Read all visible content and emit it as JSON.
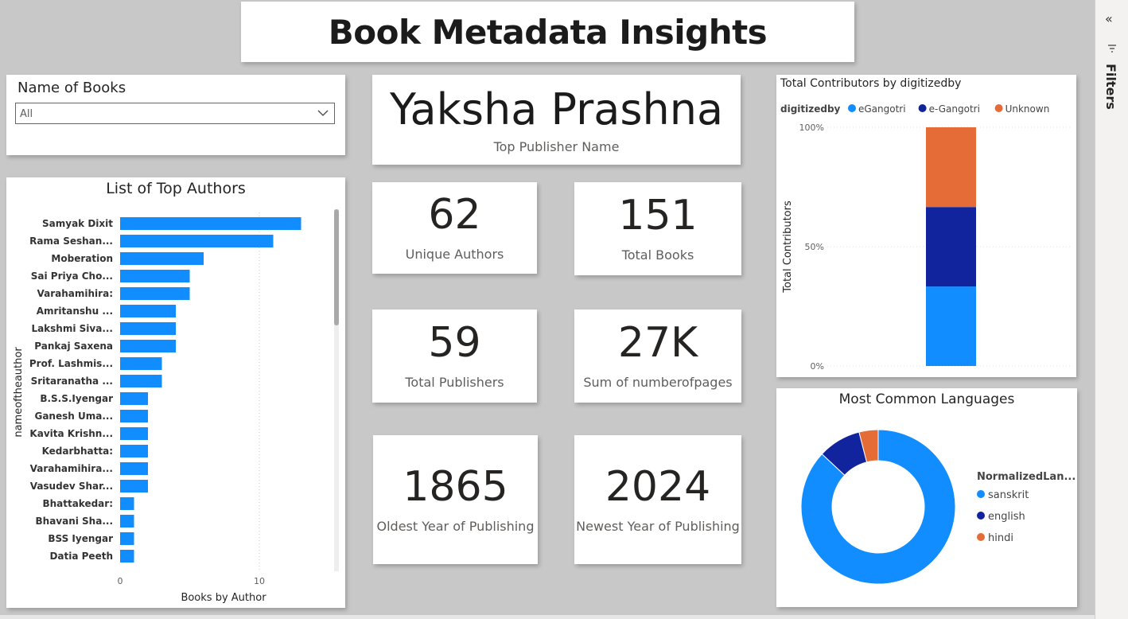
{
  "dashboard": {
    "title": "Book Metadata Insights"
  },
  "slicer": {
    "label": "Name of Books",
    "value": "All"
  },
  "top_publisher": {
    "value": "Yaksha Prashna",
    "label": "Top Publisher Name"
  },
  "kpis": {
    "unique_authors": {
      "value": "62",
      "label": "Unique Authors"
    },
    "total_books": {
      "value": "151",
      "label": "Total Books"
    },
    "total_publishers": {
      "value": "59",
      "label": "Total Publishers"
    },
    "sum_pages": {
      "value": "27K",
      "label": "Sum of numberofpages"
    },
    "oldest_year": {
      "value": "1865",
      "label": "Oldest Year of Publishing"
    },
    "newest_year": {
      "value": "2024",
      "label": "Newest Year of Publishing"
    }
  },
  "filters_pane": {
    "label": "Filters"
  },
  "colors": {
    "blue": "#118DFF",
    "navy": "#12239E",
    "orange": "#E66C37"
  },
  "chart_data": [
    {
      "type": "bar",
      "orientation": "horizontal",
      "title": "List of Top Authors",
      "xlabel": "Books by Author",
      "ylabel": "nameoftheauthor",
      "xlim": [
        0,
        15
      ],
      "xticks": [
        "0",
        "10"
      ],
      "categories": [
        "Samyak Dixit",
        "Rama Seshan...",
        "Moberation",
        "Sai Priya Cho...",
        "Varahamihira:",
        "Amritanshu ...",
        "Lakshmi Siva...",
        "Pankaj Saxena",
        "Prof. Lashmis...",
        "Sritaranatha ...",
        "B.S.S.Iyengar",
        "Ganesh Uma...",
        "Kavita Krishn...",
        "Kedarbhatta:",
        "Varahamihira...",
        "Vasudev Shar...",
        "Bhattakedar:",
        "Bhavani Sha...",
        "BSS Iyengar",
        "Datia Peeth"
      ],
      "values": [
        13,
        11,
        6,
        5,
        5,
        4,
        4,
        4,
        3,
        3,
        2,
        2,
        2,
        2,
        2,
        2,
        1,
        1,
        1,
        1
      ],
      "color": "#118DFF"
    },
    {
      "type": "bar",
      "stacked": "100%",
      "title": "Total Contributors by digitizedby",
      "ylabel": "Total Contributors",
      "legend_title": "digitizedby",
      "yticks": [
        "0%",
        "50%",
        "100%"
      ],
      "series": [
        {
          "name": "eGangotri",
          "value": 33.3,
          "color": "#118DFF"
        },
        {
          "name": "e-Gangotri",
          "value": 33.3,
          "color": "#12239E"
        },
        {
          "name": "Unknown",
          "value": 33.4,
          "color": "#E66C37"
        }
      ]
    },
    {
      "type": "pie",
      "donut": true,
      "title": "Most Common Languages",
      "legend_title": "NormalizedLan...",
      "slices": [
        {
          "label": "sanskrit",
          "value": 87,
          "color": "#118DFF"
        },
        {
          "label": "english",
          "value": 9,
          "color": "#12239E"
        },
        {
          "label": "hindi",
          "value": 4,
          "color": "#E66C37"
        }
      ]
    }
  ]
}
